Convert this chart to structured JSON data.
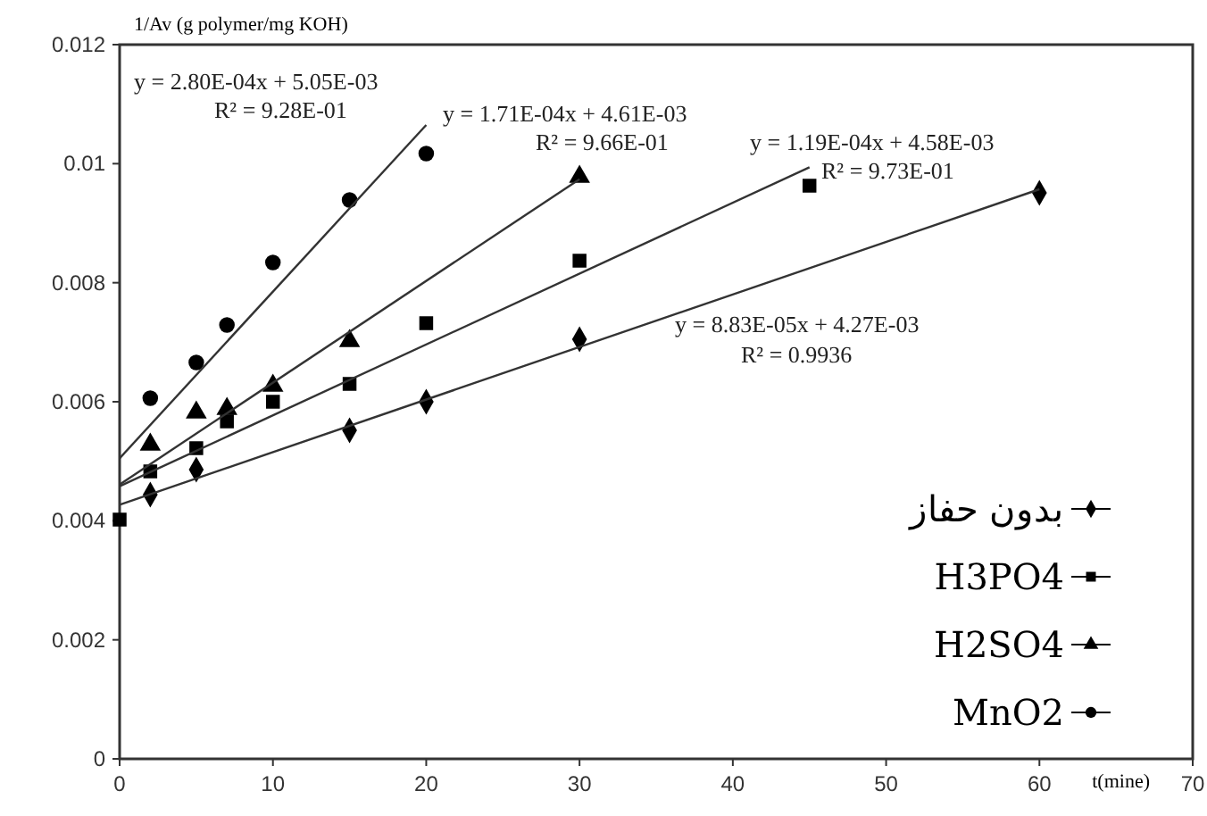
{
  "chart_data": {
    "type": "scatter",
    "xlabel": "t(mine)",
    "ylabel": "1/Av  (g polymer/mg KOH)",
    "xlim": [
      0,
      70
    ],
    "xticks": [
      0,
      10,
      20,
      30,
      40,
      50,
      60,
      70
    ],
    "ylim": [
      0,
      0.012
    ],
    "yticks": [
      0,
      0.002,
      0.004,
      0.006,
      0.008,
      0.01,
      0.012
    ],
    "grid": false,
    "legend": "right",
    "series": [
      {
        "name": "بدون حفاز",
        "color": "#000000",
        "marker": "diamond",
        "x": [
          2,
          5,
          15,
          20,
          30,
          60
        ],
        "values": [
          0.00444,
          0.00486,
          0.00552,
          0.006,
          0.00705,
          0.00951
        ]
      },
      {
        "name": "H3PO4",
        "color": "#000000",
        "marker": "square",
        "x": [
          0,
          2,
          5,
          7,
          10,
          15,
          20,
          30,
          45
        ],
        "values": [
          0.00402,
          0.00483,
          0.00522,
          0.00567,
          0.006,
          0.0063,
          0.00732,
          0.00837,
          0.00963
        ]
      },
      {
        "name": "H2SO4",
        "color": "#000000",
        "marker": "triangle",
        "x": [
          2,
          5,
          7,
          10,
          15,
          30
        ],
        "values": [
          0.00528,
          0.00582,
          0.00588,
          0.00627,
          0.00702,
          0.00978
        ]
      },
      {
        "name": "MnO2",
        "color": "#000000",
        "marker": "circle",
        "x": [
          2,
          5,
          7,
          10,
          15,
          20
        ],
        "values": [
          0.00606,
          0.00666,
          0.00729,
          0.00834,
          0.00939,
          0.01017
        ]
      },
      {
        "type": "line",
        "color": "#333333",
        "marker": "none",
        "x": [
          0,
          60
        ],
        "values": [
          0.00427,
          0.00957
        ]
      },
      {
        "type": "line",
        "color": "#333333",
        "marker": "none",
        "x": [
          0,
          45
        ],
        "values": [
          0.00458,
          0.00994
        ]
      },
      {
        "type": "line",
        "color": "#333333",
        "marker": "none",
        "x": [
          0,
          30
        ],
        "values": [
          0.00461,
          0.00974
        ]
      },
      {
        "type": "line",
        "color": "#333333",
        "marker": "none",
        "x": [
          0,
          20
        ],
        "values": [
          0.00505,
          0.01065
        ]
      }
    ],
    "annotations": [
      "y = 2.80E-04x + 5.05E-03",
      "R² = 9.28E-01",
      "y = 1.71E-04x + 4.61E-03",
      "R² = 9.66E-01",
      "y = 1.19E-04x + 4.58E-03",
      "R² = 9.73E-01",
      "y = 8.83E-05x + 4.27E-03",
      "R² = 0.9936"
    ]
  }
}
